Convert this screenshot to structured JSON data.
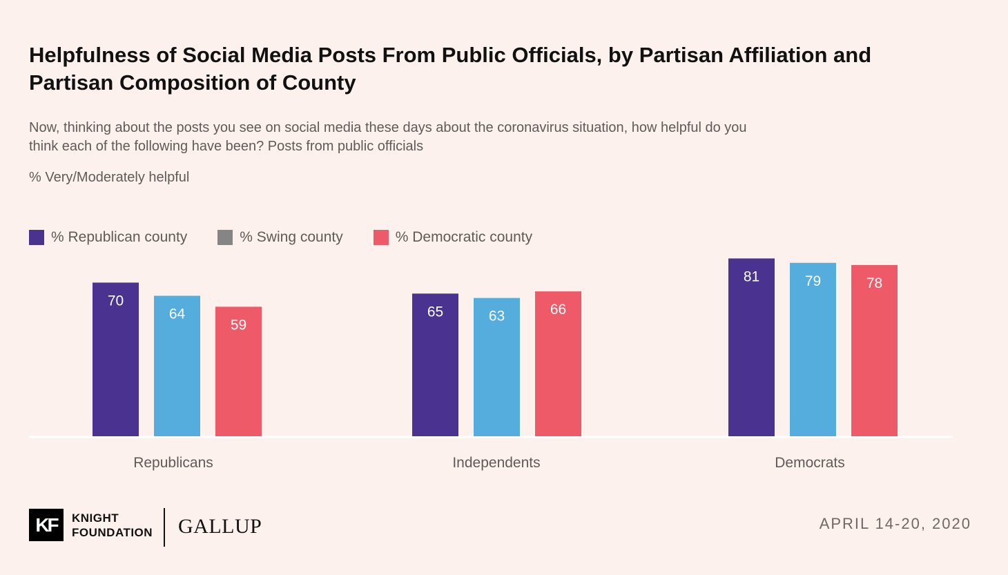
{
  "title": "Helpfulness of Social Media Posts From Public Officials, by Partisan Affiliation and Partisan Composition of County",
  "subtitle": "Now, thinking about the posts you see on social media these days about the coronavirus situation, how helpful do you think each of the following have been? Posts from public officials",
  "measure_label": "% Very/Moderately helpful",
  "footer": {
    "logo_mark": "KF",
    "knight_line1": "KNIGHT",
    "knight_line2": "FOUNDATION",
    "gallup": "GALLUP",
    "date": "APRIL 14-20, 2020"
  },
  "colors": {
    "republican_county": "#4a3390",
    "swing_county": "#55addd",
    "democratic_county": "#ef5a68"
  },
  "chart_data": {
    "type": "bar",
    "title": "Helpfulness of Social Media Posts From Public Officials, by Partisan Affiliation and Partisan Composition of County",
    "xlabel": "",
    "ylabel": "% Very/Moderately helpful",
    "ylim": [
      0,
      100
    ],
    "grid": false,
    "legend_position": "top-left",
    "categories": [
      "Republicans",
      "Independents",
      "Democrats"
    ],
    "series": [
      {
        "name": "% Republican county",
        "color": "#4a3390",
        "values": [
          70,
          65,
          81
        ]
      },
      {
        "name": "% Swing county",
        "color": "#55addd",
        "values": [
          64,
          63,
          79
        ]
      },
      {
        "name": "% Democratic county",
        "color": "#ef5a68",
        "values": [
          59,
          66,
          78
        ]
      }
    ]
  }
}
